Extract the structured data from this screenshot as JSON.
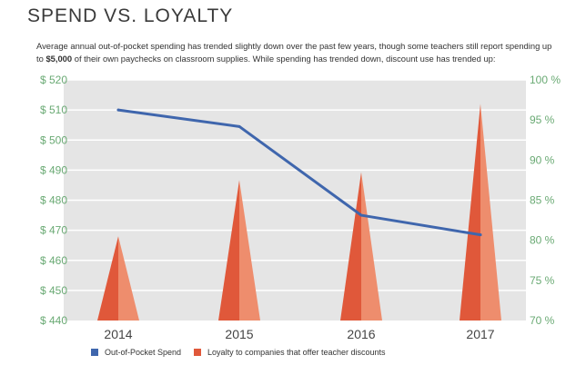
{
  "title": "SPEND VS. LOYALTY",
  "description": {
    "before": "Average annual out-of-pocket spending has trended slightly down over the past few years, though some teachers still report spending up to ",
    "emphasis": "$5,000",
    "after": " of their own paychecks on classroom supplies. While spending has trended down, discount use has trended up:"
  },
  "colors": {
    "line": "#3f66ad",
    "bar_left": "#e0583a",
    "bar_right": "#ee8d6d",
    "plot_bg": "#e5e5e5",
    "tick_text": "#6aaa74"
  },
  "chart_data": {
    "type": "line+bar",
    "categories": [
      "2014",
      "2015",
      "2016",
      "2017"
    ],
    "series": [
      {
        "name": "Out-of-Pocket Spend",
        "type": "line",
        "axis": "left",
        "values": [
          510,
          504.5,
          475,
          468.5
        ]
      },
      {
        "name": "Loyalty to companies that offer teacher discounts",
        "type": "triangle-bar",
        "axis": "right",
        "values": [
          80.5,
          87.5,
          88.5,
          97
        ]
      }
    ],
    "left_axis": {
      "min": 440,
      "max": 520,
      "step": 10,
      "prefix": "$ ",
      "ticks": [
        "$ 440",
        "$ 450",
        "$ 460",
        "$ 470",
        "$ 480",
        "$ 490",
        "$ 500",
        "$ 510",
        "$ 520"
      ]
    },
    "right_axis": {
      "min": 70,
      "max": 100,
      "step": 5,
      "suffix": " %",
      "ticks": [
        "70 %",
        "75 %",
        "80 %",
        "85 %",
        "90 %",
        "95 %",
        "100 %"
      ]
    },
    "grid": true,
    "legend": "bottom"
  },
  "legend": [
    {
      "label": "Out-of-Pocket Spend",
      "color": "#3f66ad"
    },
    {
      "label": "Loyalty to companies that offer teacher discounts",
      "color": "#e0583a"
    }
  ]
}
